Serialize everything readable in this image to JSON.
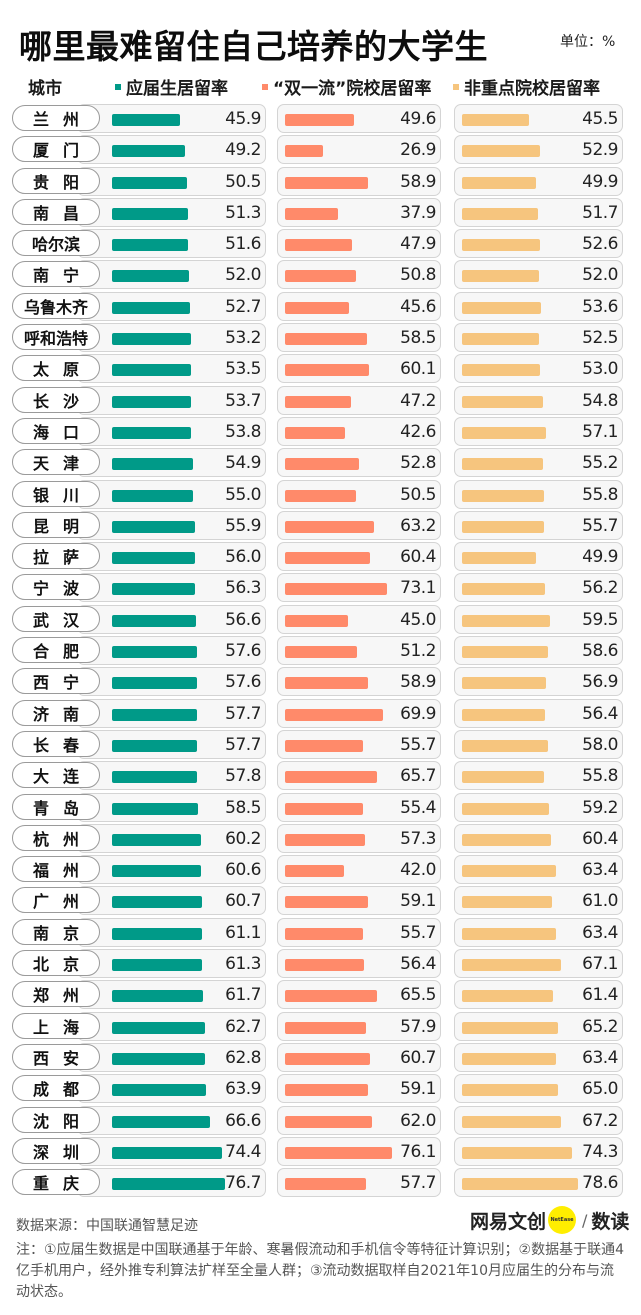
{
  "header": {
    "title": "哪里最难留住自己培养的大学生",
    "unit": "单位：%"
  },
  "columns": {
    "city": "城市",
    "s1": "应届生居留率",
    "s2": "“双一流”院校居留率",
    "s3": "非重点院校居留率"
  },
  "colors": {
    "s1": "#009a88",
    "s2": "#ff8a6a",
    "s3": "#f6c57e"
  },
  "rows": [
    {
      "city": "兰州",
      "s1": "45.9",
      "s2": "49.6",
      "s3": "45.5"
    },
    {
      "city": "厦门",
      "s1": "49.2",
      "s2": "26.9",
      "s3": "52.9"
    },
    {
      "city": "贵阳",
      "s1": "50.5",
      "s2": "58.9",
      "s3": "49.9"
    },
    {
      "city": "南昌",
      "s1": "51.3",
      "s2": "37.9",
      "s3": "51.7"
    },
    {
      "city": "哈尔滨",
      "s1": "51.6",
      "s2": "47.9",
      "s3": "52.6"
    },
    {
      "city": "南宁",
      "s1": "52.0",
      "s2": "50.8",
      "s3": "52.0"
    },
    {
      "city": "乌鲁木齐",
      "s1": "52.7",
      "s2": "45.6",
      "s3": "53.6"
    },
    {
      "city": "呼和浩特",
      "s1": "53.2",
      "s2": "58.5",
      "s3": "52.5"
    },
    {
      "city": "太原",
      "s1": "53.5",
      "s2": "60.1",
      "s3": "53.0"
    },
    {
      "city": "长沙",
      "s1": "53.7",
      "s2": "47.2",
      "s3": "54.8"
    },
    {
      "city": "海口",
      "s1": "53.8",
      "s2": "42.6",
      "s3": "57.1"
    },
    {
      "city": "天津",
      "s1": "54.9",
      "s2": "52.8",
      "s3": "55.2"
    },
    {
      "city": "银川",
      "s1": "55.0",
      "s2": "50.5",
      "s3": "55.8"
    },
    {
      "city": "昆明",
      "s1": "55.9",
      "s2": "63.2",
      "s3": "55.7"
    },
    {
      "city": "拉萨",
      "s1": "56.0",
      "s2": "60.4",
      "s3": "49.9"
    },
    {
      "city": "宁波",
      "s1": "56.3",
      "s2": "73.1",
      "s3": "56.2"
    },
    {
      "city": "武汉",
      "s1": "56.6",
      "s2": "45.0",
      "s3": "59.5"
    },
    {
      "city": "合肥",
      "s1": "57.6",
      "s2": "51.2",
      "s3": "58.6"
    },
    {
      "city": "西宁",
      "s1": "57.6",
      "s2": "58.9",
      "s3": "56.9"
    },
    {
      "city": "济南",
      "s1": "57.7",
      "s2": "69.9",
      "s3": "56.4"
    },
    {
      "city": "长春",
      "s1": "57.7",
      "s2": "55.7",
      "s3": "58.0"
    },
    {
      "city": "大连",
      "s1": "57.8",
      "s2": "65.7",
      "s3": "55.8"
    },
    {
      "city": "青岛",
      "s1": "58.5",
      "s2": "55.4",
      "s3": "59.2"
    },
    {
      "city": "杭州",
      "s1": "60.2",
      "s2": "57.3",
      "s3": "60.4"
    },
    {
      "city": "福州",
      "s1": "60.6",
      "s2": "42.0",
      "s3": "63.4"
    },
    {
      "city": "广州",
      "s1": "60.7",
      "s2": "59.1",
      "s3": "61.0"
    },
    {
      "city": "南京",
      "s1": "61.1",
      "s2": "55.7",
      "s3": "63.4"
    },
    {
      "city": "北京",
      "s1": "61.3",
      "s2": "56.4",
      "s3": "67.1"
    },
    {
      "city": "郑州",
      "s1": "61.7",
      "s2": "65.5",
      "s3": "61.4"
    },
    {
      "city": "上海",
      "s1": "62.7",
      "s2": "57.9",
      "s3": "65.2"
    },
    {
      "city": "西安",
      "s1": "62.8",
      "s2": "60.7",
      "s3": "63.4"
    },
    {
      "city": "成都",
      "s1": "63.9",
      "s2": "59.1",
      "s3": "65.0"
    },
    {
      "city": "沈阳",
      "s1": "66.6",
      "s2": "62.0",
      "s3": "67.2"
    },
    {
      "city": "深圳",
      "s1": "74.4",
      "s2": "76.1",
      "s3": "74.3"
    },
    {
      "city": "重庆",
      "s1": "76.7",
      "s2": "57.7",
      "s3": "78.6"
    }
  ],
  "footer": {
    "source": "数据来源：中国联通智慧足迹",
    "note": "注：①应届生数据是中国联通基于年龄、寒暑假流动和手机信令等特征计算识别；②数据基于联通4亿手机用户，经外推专利算法扩样至全量人群；③流动数据取样自2021年10月应届生的分布与流动状态。",
    "logo_text": "网易文创",
    "logo_badge": "NetEase",
    "logo_slash": "/",
    "logo_suffix": "数读"
  },
  "chart_data": {
    "type": "bar",
    "orientation": "horizontal",
    "title": "哪里最难留住自己培养的大学生",
    "unit": "%",
    "categories": [
      "兰州",
      "厦门",
      "贵阳",
      "南昌",
      "哈尔滨",
      "南宁",
      "乌鲁木齐",
      "呼和浩特",
      "太原",
      "长沙",
      "海口",
      "天津",
      "银川",
      "昆明",
      "拉萨",
      "宁波",
      "武汉",
      "合肥",
      "西宁",
      "济南",
      "长春",
      "大连",
      "青岛",
      "杭州",
      "福州",
      "广州",
      "南京",
      "北京",
      "郑州",
      "上海",
      "西安",
      "成都",
      "沈阳",
      "深圳",
      "重庆"
    ],
    "series": [
      {
        "name": "应届生居留率",
        "color": "#009a88",
        "values": [
          45.9,
          49.2,
          50.5,
          51.3,
          51.6,
          52.0,
          52.7,
          53.2,
          53.5,
          53.7,
          53.8,
          54.9,
          55.0,
          55.9,
          56.0,
          56.3,
          56.6,
          57.6,
          57.6,
          57.7,
          57.7,
          57.8,
          58.5,
          60.2,
          60.6,
          60.7,
          61.1,
          61.3,
          61.7,
          62.7,
          62.8,
          63.9,
          66.6,
          74.4,
          76.7
        ]
      },
      {
        "name": "“双一流”院校居留率",
        "color": "#ff8a6a",
        "values": [
          49.6,
          26.9,
          58.9,
          37.9,
          47.9,
          50.8,
          45.6,
          58.5,
          60.1,
          47.2,
          42.6,
          52.8,
          50.5,
          63.2,
          60.4,
          73.1,
          45.0,
          51.2,
          58.9,
          69.9,
          55.7,
          65.7,
          55.4,
          57.3,
          42.0,
          59.1,
          55.7,
          56.4,
          65.5,
          57.9,
          60.7,
          59.1,
          62.0,
          76.1,
          57.7
        ]
      },
      {
        "name": "非重点院校居留率",
        "color": "#f6c57e",
        "values": [
          45.5,
          52.9,
          49.9,
          51.7,
          52.6,
          52.0,
          53.6,
          52.5,
          53.0,
          54.8,
          57.1,
          55.2,
          55.8,
          55.7,
          49.9,
          56.2,
          59.5,
          58.6,
          56.9,
          56.4,
          58.0,
          55.8,
          59.2,
          60.4,
          63.4,
          61.0,
          63.4,
          67.1,
          61.4,
          65.2,
          63.4,
          65.0,
          67.2,
          74.3,
          78.6
        ]
      }
    ],
    "xlabel": "",
    "ylabel": "城市",
    "grid": false,
    "legend_position": "top",
    "source": "数据来源：中国联通智慧足迹"
  }
}
